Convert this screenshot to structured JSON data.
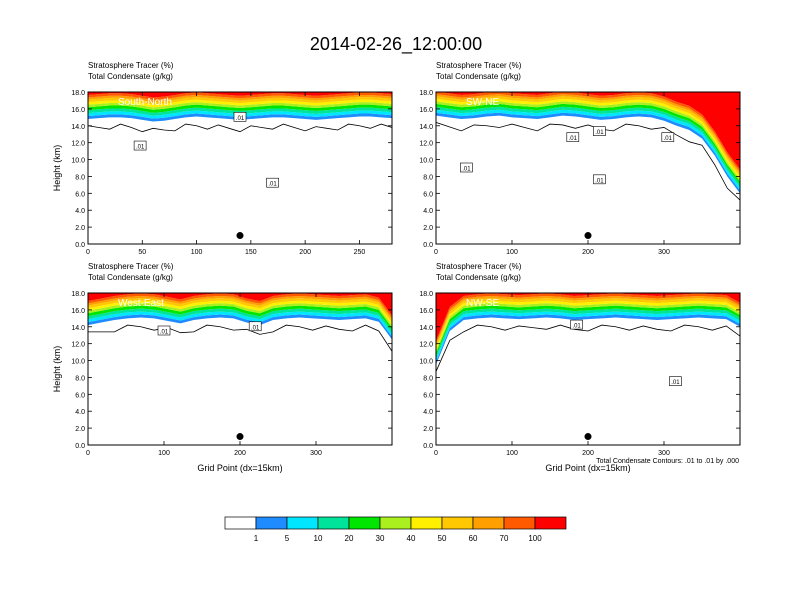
{
  "title": "2014-02-26_12:00:00",
  "colors": [
    "#ffffff",
    "#1e8cff",
    "#00e6ff",
    "#00e39b",
    "#00e600",
    "#aaf01e",
    "#fff000",
    "#ffc800",
    "#ffa000",
    "#ff5a00",
    "#ff0000"
  ],
  "colorbar": {
    "labels": [
      "1",
      "5",
      "10",
      "20",
      "30",
      "40",
      "50",
      "60",
      "70",
      "100"
    ]
  },
  "footnote": "Total Condensate Contours: .01 to .01 by .000",
  "chart_data": [
    {
      "type": "heatmap",
      "subtitle1": "Stratosphere Tracer   (%)",
      "subtitle2": "Total Condensate   (g/kg)",
      "panel_label": "South-North",
      "ylabel": "Height (km)",
      "xlabel": "",
      "xlim": [
        0,
        280
      ],
      "ylim": [
        0,
        18
      ],
      "xticks": [
        0,
        50,
        100,
        150,
        200,
        250
      ],
      "yticks": [
        0,
        2,
        4,
        6,
        8,
        10,
        12,
        14,
        16,
        18
      ],
      "tracer_band_base": [
        14.8,
        14.9,
        15.0,
        15.0,
        14.9,
        14.7,
        14.5,
        14.6,
        14.8,
        15.0,
        15.1,
        15.0,
        14.9,
        14.8,
        14.7,
        14.8,
        14.9,
        15.0,
        15.0,
        14.9,
        14.8,
        14.7,
        14.8,
        14.9,
        15.0,
        15.1,
        15.1,
        15.0,
        14.9
      ],
      "contour_labels": [
        {
          "x": 48,
          "y": 11.6,
          "text": ".01"
        },
        {
          "x": 140,
          "y": 15.0,
          "text": ".01"
        },
        {
          "x": 170,
          "y": 7.2,
          "text": ".01"
        }
      ],
      "marker": {
        "x": 140,
        "y": 1.0
      }
    },
    {
      "type": "heatmap",
      "subtitle1": "Stratosphere Tracer   (%)",
      "subtitle2": "Total Condensate   (g/kg)",
      "panel_label": "SW-NE",
      "ylabel": "",
      "xlabel": "",
      "xlim": [
        0,
        400
      ],
      "ylim": [
        0,
        18
      ],
      "xticks": [
        0,
        100,
        200,
        300
      ],
      "yticks": [
        0,
        2,
        4,
        6,
        8,
        10,
        12,
        14,
        16,
        18
      ],
      "tracer_band_base": [
        15.2,
        15.0,
        14.8,
        14.9,
        15.1,
        15.2,
        15.0,
        14.9,
        14.8,
        15.0,
        15.2,
        15.1,
        14.9,
        14.7,
        14.8,
        15.0,
        15.1,
        15.0,
        14.6,
        14.0,
        13.5,
        12.5,
        10.5,
        8.0,
        6.0
      ],
      "contour_labels": [
        {
          "x": 40,
          "y": 9.0,
          "text": ".01"
        },
        {
          "x": 180,
          "y": 12.6,
          "text": ".01"
        },
        {
          "x": 215,
          "y": 13.3,
          "text": ".01"
        },
        {
          "x": 215,
          "y": 7.6,
          "text": ".01"
        },
        {
          "x": 305,
          "y": 12.6,
          "text": ".01"
        }
      ],
      "marker": {
        "x": 200,
        "y": 1.0
      }
    },
    {
      "type": "heatmap",
      "subtitle1": "Stratosphere Tracer   (%)",
      "subtitle2": "Total Condensate   (g/kg)",
      "panel_label": "West-East",
      "ylabel": "Height (km)",
      "xlabel": "Grid Point (dx=15km)",
      "xlim": [
        0,
        400
      ],
      "ylim": [
        0,
        18
      ],
      "xticks": [
        0,
        100,
        200,
        300
      ],
      "yticks": [
        0,
        2,
        4,
        6,
        8,
        10,
        12,
        14,
        16,
        18
      ],
      "tracer_band_base": [
        14.2,
        14.5,
        14.8,
        15.0,
        15.1,
        15.0,
        14.7,
        14.4,
        14.8,
        15.0,
        15.1,
        15.0,
        14.5,
        14.2,
        14.8,
        15.0,
        15.1,
        15.0,
        14.9,
        14.8,
        14.9,
        15.0,
        14.6,
        12.5
      ],
      "contour_labels": [
        {
          "x": 100,
          "y": 13.5,
          "text": ".01"
        },
        {
          "x": 220,
          "y": 14.0,
          "text": ".01"
        }
      ],
      "marker": {
        "x": 200,
        "y": 1.0
      }
    },
    {
      "type": "heatmap",
      "subtitle1": "Stratosphere Tracer   (%)",
      "subtitle2": "Total Condensate   (g/kg)",
      "panel_label": "NW-SE",
      "ylabel": "",
      "xlabel": "Grid Point (dx=15km)",
      "xlim": [
        0,
        400
      ],
      "ylim": [
        0,
        18
      ],
      "xticks": [
        0,
        100,
        200,
        300
      ],
      "yticks": [
        0,
        2,
        4,
        6,
        8,
        10,
        12,
        14,
        16,
        18
      ],
      "tracer_band_base": [
        9.5,
        13.5,
        14.8,
        15.0,
        15.1,
        15.0,
        14.9,
        15.0,
        15.1,
        15.0,
        14.8,
        14.9,
        15.0,
        15.1,
        15.0,
        14.9,
        14.8,
        14.9,
        15.0,
        15.1,
        15.0,
        14.9,
        14.0
      ],
      "contour_labels": [
        {
          "x": 185,
          "y": 14.2,
          "text": ".01"
        },
        {
          "x": 315,
          "y": 7.5,
          "text": ".01"
        }
      ],
      "marker": {
        "x": 200,
        "y": 1.0
      }
    }
  ]
}
